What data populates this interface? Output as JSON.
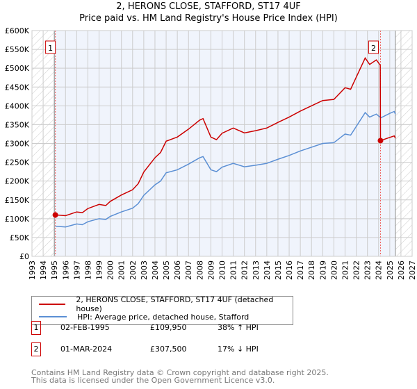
{
  "chart_data": {
    "type": "line",
    "title": "2, HERONS CLOSE, STAFFORD, ST17 4UF",
    "subtitle": "Price paid vs. HM Land Registry's House Price Index (HPI)",
    "xlim": [
      1993,
      2027
    ],
    "ylim": [
      0,
      600000
    ],
    "x_ticks": [
      "1993",
      "1994",
      "1995",
      "1996",
      "1997",
      "1998",
      "1999",
      "2000",
      "2001",
      "2002",
      "2003",
      "2004",
      "2005",
      "2006",
      "2007",
      "2008",
      "2009",
      "2010",
      "2011",
      "2012",
      "2013",
      "2014",
      "2015",
      "2016",
      "2017",
      "2018",
      "2019",
      "2020",
      "2021",
      "2022",
      "2023",
      "2024",
      "2025",
      "2026",
      "2027"
    ],
    "y_ticks": [
      {
        "v": 0,
        "l": "£0"
      },
      {
        "v": 50000,
        "l": "£50K"
      },
      {
        "v": 100000,
        "l": "£100K"
      },
      {
        "v": 150000,
        "l": "£150K"
      },
      {
        "v": 200000,
        "l": "£200K"
      },
      {
        "v": 250000,
        "l": "£250K"
      },
      {
        "v": 300000,
        "l": "£300K"
      },
      {
        "v": 350000,
        "l": "£350K"
      },
      {
        "v": 400000,
        "l": "£400K"
      },
      {
        "v": 450000,
        "l": "£450K"
      },
      {
        "v": 500000,
        "l": "£500K"
      },
      {
        "v": 550000,
        "l": "£550K"
      },
      {
        "v": 600000,
        "l": "£600K"
      }
    ],
    "grid": true,
    "hatched_before": 1995.0,
    "hatched_after": 2025.5,
    "series": [
      {
        "name": "2, HERONS CLOSE, STAFFORD, ST17 4UF (detached house)",
        "color": "#cc0000",
        "x": [
          1995.1,
          1996,
          1997,
          1997.5,
          1998,
          1999,
          1999.6,
          2000,
          2001,
          2002,
          2002.5,
          2003,
          2004,
          2004.5,
          2005,
          2006,
          2007,
          2008,
          2008.3,
          2009,
          2009.5,
          2010,
          2011,
          2012,
          2013,
          2014,
          2015,
          2016,
          2017,
          2018,
          2019,
          2020,
          2021,
          2021.5,
          2022,
          2022.8,
          2023.2,
          2023.8,
          2024.15,
          2024.17,
          2025,
          2025.4,
          2025.5
        ],
        "y": [
          110000,
          108000,
          118000,
          116000,
          127000,
          138000,
          135000,
          146000,
          163000,
          177000,
          193000,
          224000,
          262000,
          276000,
          306000,
          317000,
          338000,
          362000,
          366000,
          317000,
          310000,
          327000,
          341000,
          328000,
          334000,
          341000,
          356000,
          370000,
          386000,
          400000,
          414000,
          417000,
          448000,
          444000,
          476000,
          527000,
          510000,
          522000,
          508000,
          307500,
          316000,
          320000,
          314000
        ]
      },
      {
        "name": "HPI: Average price, detached house, Stafford",
        "color": "#5b8fd4",
        "x": [
          1995.1,
          1996,
          1997,
          1997.5,
          1998,
          1999,
          1999.6,
          2000,
          2001,
          2002,
          2002.5,
          2003,
          2004,
          2004.5,
          2005,
          2006,
          2007,
          2008,
          2008.3,
          2009,
          2009.5,
          2010,
          2011,
          2012,
          2013,
          2014,
          2015,
          2016,
          2017,
          2018,
          2019,
          2020,
          2021,
          2021.5,
          2022,
          2022.8,
          2023.2,
          2023.8,
          2024.2,
          2025,
          2025.4,
          2025.5
        ],
        "y": [
          80000,
          78000,
          86000,
          84000,
          92000,
          100000,
          98000,
          106000,
          118000,
          128000,
          140000,
          162000,
          190000,
          200000,
          222000,
          230000,
          245000,
          262000,
          265000,
          230000,
          225000,
          237000,
          247000,
          238000,
          242000,
          247000,
          258000,
          268000,
          280000,
          290000,
          300000,
          302000,
          325000,
          322000,
          345000,
          382000,
          370000,
          378000,
          368000,
          380000,
          385000,
          378000
        ]
      }
    ],
    "sales": [
      {
        "n": "1",
        "x": 1995.09,
        "y": 109950
      },
      {
        "n": "2",
        "x": 2024.17,
        "y": 307500
      }
    ]
  },
  "legend": {
    "red": "2, HERONS CLOSE, STAFFORD, ST17 4UF (detached house)",
    "blue": "HPI: Average price, detached house, Stafford"
  },
  "transactions": [
    {
      "n": "1",
      "date": "02-FEB-1995",
      "price": "£109,950",
      "hpi": "38% ↑ HPI"
    },
    {
      "n": "2",
      "date": "01-MAR-2024",
      "price": "£307,500",
      "hpi": "17% ↓ HPI"
    }
  ],
  "footer": {
    "line1": "Contains HM Land Registry data © Crown copyright and database right 2025.",
    "line2": "This data is licensed under the Open Government Licence v3.0."
  }
}
